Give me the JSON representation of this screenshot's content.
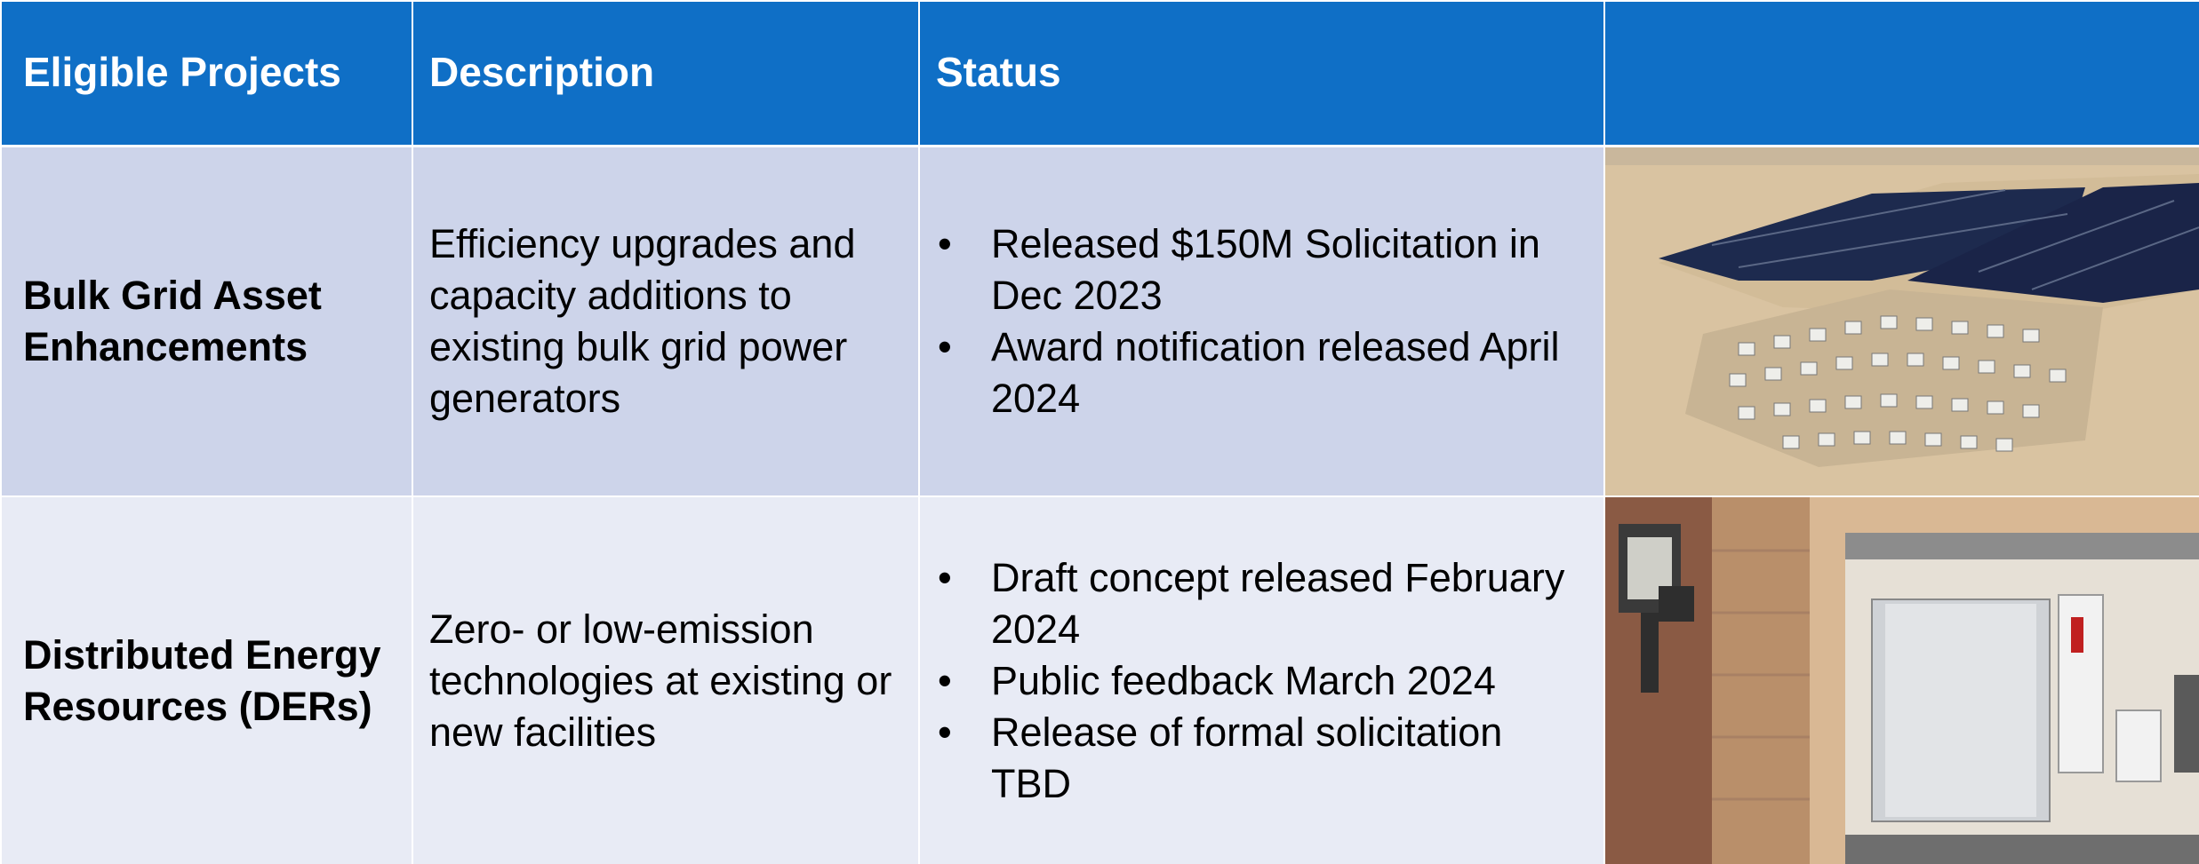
{
  "header": {
    "columns": [
      "Eligible Projects",
      "Description",
      "Status"
    ]
  },
  "table": {
    "rows": [
      {
        "project": "Bulk Grid Asset Enhancements",
        "description": "Efficiency upgrades and capacity additions to existing bulk grid power generators",
        "status": [
          "Released $150M Solicitation in Dec 2023",
          "Award notification released April 2024"
        ]
      },
      {
        "project": "Distributed Energy Resources (DERs)",
        "description": "Zero- or low-emission technologies at existing or new facilities",
        "status": [
          "Draft concept released February 2024",
          "Public feedback March 2024",
          "Release of formal solicitation TBD"
        ]
      }
    ]
  }
}
